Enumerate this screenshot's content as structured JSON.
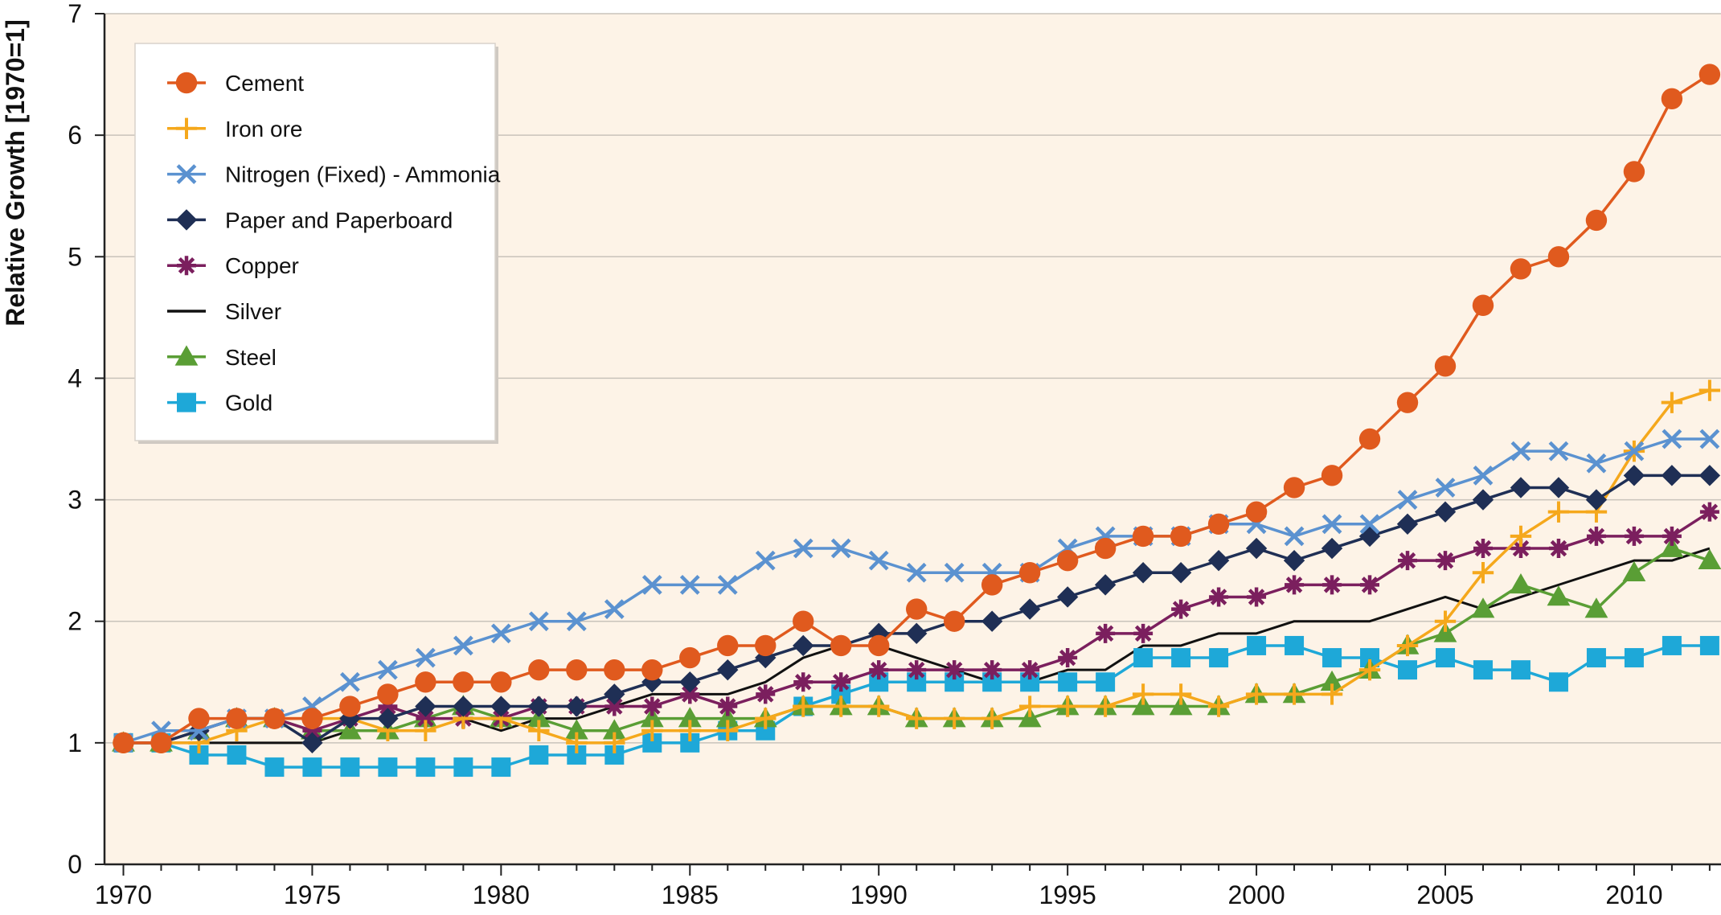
{
  "chart_data": {
    "type": "line",
    "title": "",
    "xlabel": "",
    "ylabel": "Relative Growth [1970=1]",
    "xlim": [
      1969.5,
      2012.3
    ],
    "ylim": [
      0,
      7
    ],
    "xticks": [
      1970,
      1975,
      1980,
      1985,
      1990,
      1995,
      2000,
      2005,
      2010
    ],
    "yticks": [
      0,
      1,
      2,
      3,
      4,
      5,
      6,
      7
    ],
    "grid": "horizontal",
    "background": "#fdf3e7",
    "legend_position": "top-left",
    "x": [
      1970,
      1971,
      1972,
      1973,
      1974,
      1975,
      1976,
      1977,
      1978,
      1979,
      1980,
      1981,
      1982,
      1983,
      1984,
      1985,
      1986,
      1987,
      1988,
      1989,
      1990,
      1991,
      1992,
      1993,
      1994,
      1995,
      1996,
      1997,
      1998,
      1999,
      2000,
      2001,
      2002,
      2003,
      2004,
      2005,
      2006,
      2007,
      2008,
      2009,
      2010,
      2011,
      2012
    ],
    "series": [
      {
        "name": "Cement",
        "color": "#e05a1e",
        "marker": "circle",
        "values": [
          1.0,
          1.0,
          1.2,
          1.2,
          1.2,
          1.2,
          1.3,
          1.4,
          1.5,
          1.5,
          1.5,
          1.6,
          1.6,
          1.6,
          1.6,
          1.7,
          1.8,
          1.8,
          2.0,
          1.8,
          1.8,
          2.1,
          2.0,
          2.3,
          2.4,
          2.5,
          2.6,
          2.7,
          2.7,
          2.8,
          2.9,
          3.1,
          3.2,
          3.5,
          3.8,
          4.1,
          4.6,
          4.9,
          5.0,
          5.3,
          5.7,
          6.3,
          6.5
        ]
      },
      {
        "name": "Iron ore",
        "color": "#f5a81c",
        "marker": "plus",
        "values": [
          1.0,
          1.0,
          1.0,
          1.1,
          1.2,
          1.2,
          1.2,
          1.1,
          1.1,
          1.2,
          1.2,
          1.1,
          1.0,
          1.0,
          1.1,
          1.1,
          1.1,
          1.2,
          1.3,
          1.3,
          1.3,
          1.2,
          1.2,
          1.2,
          1.3,
          1.3,
          1.3,
          1.4,
          1.4,
          1.3,
          1.4,
          1.4,
          1.4,
          1.6,
          1.8,
          2.0,
          2.4,
          2.7,
          2.9,
          2.9,
          3.4,
          3.8,
          3.9
        ]
      },
      {
        "name": "Nitrogen (Fixed) - Ammonia",
        "color": "#5b92d0",
        "marker": "x",
        "values": [
          1.0,
          1.1,
          1.1,
          1.2,
          1.2,
          1.3,
          1.5,
          1.6,
          1.7,
          1.8,
          1.9,
          2.0,
          2.0,
          2.1,
          2.3,
          2.3,
          2.3,
          2.5,
          2.6,
          2.6,
          2.5,
          2.4,
          2.4,
          2.4,
          2.4,
          2.6,
          2.7,
          2.7,
          2.7,
          2.8,
          2.8,
          2.7,
          2.8,
          2.8,
          3.0,
          3.1,
          3.2,
          3.4,
          3.4,
          3.3,
          3.4,
          3.5,
          3.5
        ]
      },
      {
        "name": "Paper and Paperboard",
        "color": "#1f2f55",
        "marker": "diamond",
        "values": [
          1.0,
          1.0,
          1.1,
          1.2,
          1.2,
          1.0,
          1.2,
          1.2,
          1.3,
          1.3,
          1.3,
          1.3,
          1.3,
          1.4,
          1.5,
          1.5,
          1.6,
          1.7,
          1.8,
          1.8,
          1.9,
          1.9,
          2.0,
          2.0,
          2.1,
          2.2,
          2.3,
          2.4,
          2.4,
          2.5,
          2.6,
          2.5,
          2.6,
          2.7,
          2.8,
          2.9,
          3.0,
          3.1,
          3.1,
          3.0,
          3.2,
          3.2,
          3.2
        ]
      },
      {
        "name": "Copper",
        "color": "#7b1f5e",
        "marker": "star",
        "values": [
          1.0,
          1.0,
          1.1,
          1.2,
          1.2,
          1.1,
          1.2,
          1.3,
          1.2,
          1.2,
          1.2,
          1.3,
          1.3,
          1.3,
          1.3,
          1.4,
          1.3,
          1.4,
          1.5,
          1.5,
          1.6,
          1.6,
          1.6,
          1.6,
          1.6,
          1.7,
          1.9,
          1.9,
          2.1,
          2.2,
          2.2,
          2.3,
          2.3,
          2.3,
          2.5,
          2.5,
          2.6,
          2.6,
          2.6,
          2.7,
          2.7,
          2.7,
          2.9
        ]
      },
      {
        "name": "Silver",
        "color": "#111111",
        "marker": "none",
        "values": [
          1.0,
          1.0,
          1.0,
          1.0,
          1.0,
          1.0,
          1.1,
          1.1,
          1.1,
          1.2,
          1.1,
          1.2,
          1.2,
          1.3,
          1.4,
          1.4,
          1.4,
          1.5,
          1.7,
          1.8,
          1.8,
          1.7,
          1.6,
          1.5,
          1.5,
          1.6,
          1.6,
          1.8,
          1.8,
          1.9,
          1.9,
          2.0,
          2.0,
          2.0,
          2.1,
          2.2,
          2.1,
          2.2,
          2.3,
          2.4,
          2.5,
          2.5,
          2.6
        ]
      },
      {
        "name": "Steel",
        "color": "#5a9e35",
        "marker": "triangle",
        "values": [
          1.0,
          1.0,
          1.1,
          1.2,
          1.2,
          1.1,
          1.1,
          1.1,
          1.2,
          1.3,
          1.2,
          1.2,
          1.1,
          1.1,
          1.2,
          1.2,
          1.2,
          1.2,
          1.3,
          1.3,
          1.3,
          1.2,
          1.2,
          1.2,
          1.2,
          1.3,
          1.3,
          1.3,
          1.3,
          1.3,
          1.4,
          1.4,
          1.5,
          1.6,
          1.8,
          1.9,
          2.1,
          2.3,
          2.2,
          2.1,
          2.4,
          2.6,
          2.5
        ]
      },
      {
        "name": "Gold",
        "color": "#1ea8d8",
        "marker": "square",
        "values": [
          1.0,
          1.0,
          0.9,
          0.9,
          0.8,
          0.8,
          0.8,
          0.8,
          0.8,
          0.8,
          0.8,
          0.9,
          0.9,
          0.9,
          1.0,
          1.0,
          1.1,
          1.1,
          1.3,
          1.4,
          1.5,
          1.5,
          1.5,
          1.5,
          1.5,
          1.5,
          1.5,
          1.7,
          1.7,
          1.7,
          1.8,
          1.8,
          1.7,
          1.7,
          1.6,
          1.7,
          1.6,
          1.6,
          1.5,
          1.7,
          1.7,
          1.8,
          1.8
        ]
      }
    ]
  }
}
